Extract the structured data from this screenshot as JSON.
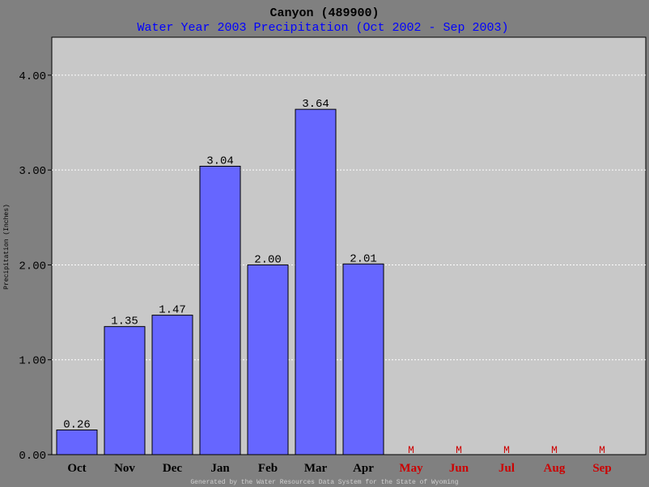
{
  "chart_data": {
    "type": "bar",
    "title": "Canyon (489900)",
    "subtitle": "Water Year 2003 Precipitation (Oct 2002 - Sep 2003)",
    "ylabel": "Precipitation (Inches)",
    "xlabel": "",
    "ylim": [
      0,
      4.4
    ],
    "yticks": [
      0,
      1,
      2,
      3,
      4
    ],
    "ytick_labels": [
      "0.00",
      "1.00",
      "2.00",
      "3.00",
      "4.00"
    ],
    "grid": true,
    "categories": [
      "Oct",
      "Nov",
      "Dec",
      "Jan",
      "Feb",
      "Mar",
      "Apr",
      "May",
      "Jun",
      "Jul",
      "Aug",
      "Sep"
    ],
    "values": [
      0.26,
      1.35,
      1.47,
      3.04,
      2.0,
      3.64,
      2.01,
      null,
      null,
      null,
      null,
      null
    ],
    "value_labels": [
      "0.26",
      "1.35",
      "1.47",
      "3.04",
      "2.00",
      "3.64",
      "2.01",
      "M",
      "M",
      "M",
      "M",
      "M"
    ],
    "missing_marker": "M",
    "footer": "Generated by the Water Resources Data System for the State of Wyoming",
    "colors": {
      "background": "#808080",
      "plot_bg": "#c8c8c8",
      "bar": "#6666ff",
      "title": "#000000",
      "subtitle": "#0000ff",
      "missing": "#cc0000",
      "grid": "#ffffff"
    }
  }
}
